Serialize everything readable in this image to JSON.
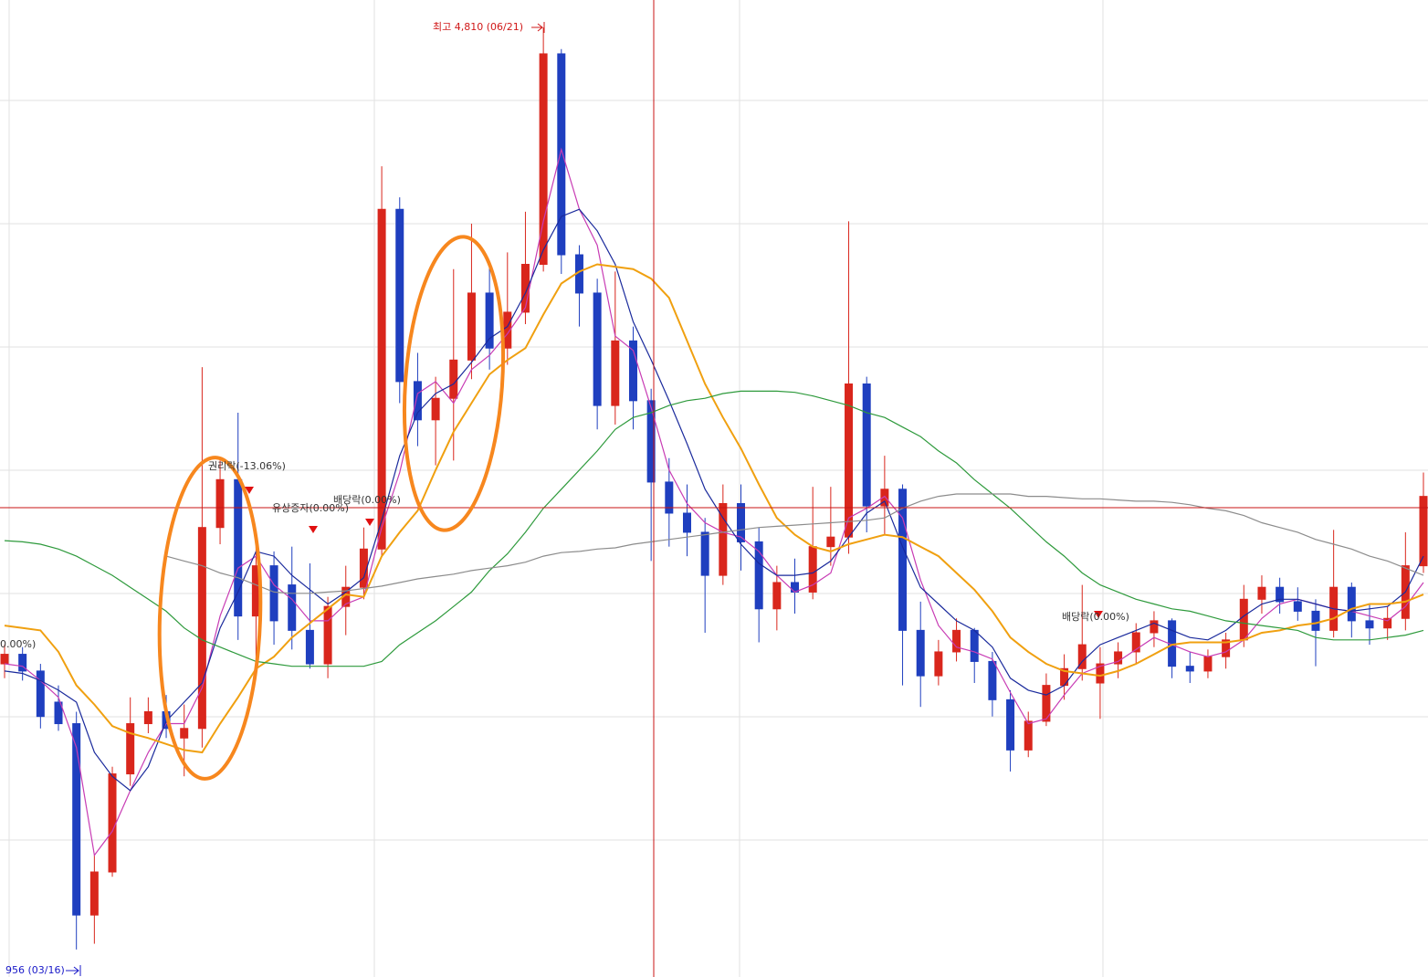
{
  "chart_data": {
    "type": "candlestick",
    "high_label": "최고 4,810 (06/21)",
    "low_label": "956 (03/16)",
    "events": [
      "권리락(-13.06%)",
      "유상증자(0.00%)",
      "배당락(0.00%)",
      "배당락(0.00%)",
      "0.00%)"
    ],
    "ylim": [
      841,
      4925
    ],
    "up_color": "#d9261c",
    "down_color": "#1f3fbf",
    "open": [
      2150,
      2190,
      2120,
      1990,
      1900,
      1100,
      1280,
      1690,
      1900,
      1950,
      1840,
      1880,
      2720,
      2920,
      2350,
      2560,
      2480,
      2290,
      2150,
      2390,
      2470,
      2630,
      4050,
      3330,
      3170,
      3260,
      3420,
      3700,
      3470,
      3620,
      3820,
      4700,
      3860,
      3700,
      3230,
      3500,
      3250,
      2910,
      2780,
      2700,
      2520,
      2820,
      2660,
      2380,
      2490,
      2450,
      2640,
      2680,
      3320,
      2810,
      2880,
      2290,
      2100,
      2200,
      2290,
      2160,
      2000,
      1790,
      1910,
      2060,
      2130,
      2070,
      2150,
      2200,
      2280,
      2330,
      2140,
      2120,
      2180,
      2250,
      2420,
      2470,
      2410,
      2370,
      2290,
      2470,
      2330,
      2300,
      2340,
      2560
    ],
    "high": [
      2230,
      2220,
      2150,
      2060,
      1950,
      1350,
      1720,
      2010,
      2010,
      2020,
      1980,
      3390,
      3000,
      3200,
      2640,
      2620,
      2640,
      2570,
      2430,
      2560,
      2720,
      4230,
      4100,
      3450,
      3350,
      3800,
      3990,
      3830,
      3870,
      4040,
      4810,
      4720,
      3900,
      3760,
      3790,
      3560,
      3300,
      3010,
      2900,
      2760,
      2900,
      2900,
      2720,
      2560,
      2590,
      2890,
      2890,
      4000,
      3350,
      3020,
      2900,
      2410,
      2250,
      2340,
      2300,
      2200,
      2040,
      1950,
      2110,
      2190,
      2480,
      2220,
      2240,
      2320,
      2370,
      2340,
      2200,
      2210,
      2280,
      2480,
      2520,
      2510,
      2470,
      2420,
      2710,
      2490,
      2400,
      2390,
      2700,
      2950
    ],
    "low": [
      2090,
      2080,
      1880,
      1870,
      956,
      980,
      1260,
      1640,
      1860,
      1840,
      1680,
      1800,
      2650,
      2250,
      2170,
      2230,
      2210,
      2130,
      2090,
      2270,
      2420,
      2600,
      3240,
      3060,
      2980,
      3000,
      3340,
      3380,
      3400,
      3570,
      3790,
      3780,
      3560,
      3130,
      3150,
      3130,
      2580,
      2640,
      2600,
      2280,
      2480,
      2540,
      2240,
      2290,
      2360,
      2420,
      2560,
      2610,
      2700,
      2690,
      2060,
      1970,
      2060,
      2160,
      2070,
      1930,
      1700,
      1760,
      1890,
      2000,
      2080,
      1920,
      2090,
      2150,
      2220,
      2090,
      2070,
      2090,
      2130,
      2220,
      2360,
      2360,
      2330,
      2140,
      2260,
      2260,
      2230,
      2250,
      2290,
      2530
    ],
    "close": [
      2190,
      2120,
      1930,
      1900,
      1100,
      1280,
      1690,
      1900,
      1950,
      1880,
      1880,
      2720,
      2920,
      2350,
      2560,
      2330,
      2290,
      2150,
      2390,
      2470,
      2630,
      4050,
      3330,
      3170,
      3260,
      3420,
      3700,
      3470,
      3620,
      3820,
      4700,
      3860,
      3700,
      3230,
      3500,
      3250,
      2910,
      2780,
      2700,
      2520,
      2820,
      2660,
      2380,
      2490,
      2450,
      2640,
      2680,
      3320,
      2810,
      2880,
      2290,
      2100,
      2200,
      2290,
      2160,
      2000,
      1790,
      1910,
      2060,
      2130,
      2230,
      2150,
      2200,
      2280,
      2330,
      2140,
      2120,
      2180,
      2250,
      2420,
      2470,
      2410,
      2370,
      2290,
      2470,
      2330,
      2300,
      2340,
      2560,
      2850
    ],
    "moving_averages": [
      {
        "color": "#c83cb4",
        "values": [
          2150,
          2140,
          2080,
          2010,
          1800,
          1350,
          1450,
          1620,
          1780,
          1900,
          1900,
          2050,
          2350,
          2550,
          2600,
          2480,
          2420,
          2330,
          2330,
          2400,
          2430,
          2720,
          2950,
          3280,
          3330,
          3240,
          3380,
          3440,
          3530,
          3640,
          4000,
          4300,
          4050,
          3900,
          3520,
          3460,
          3220,
          2960,
          2820,
          2740,
          2700,
          2680,
          2620,
          2520,
          2450,
          2480,
          2530,
          2760,
          2800,
          2850,
          2760,
          2500,
          2310,
          2220,
          2200,
          2170,
          2030,
          1900,
          1920,
          2020,
          2110,
          2140,
          2160,
          2210,
          2260,
          2230,
          2200,
          2180,
          2200,
          2250,
          2340,
          2400,
          2420,
          2400,
          2380,
          2370,
          2350,
          2330,
          2390,
          2490
        ]
      },
      {
        "color": "#1a2a9c",
        "values": [
          2120,
          2110,
          2080,
          2040,
          1990,
          1780,
          1680,
          1620,
          1720,
          1910,
          1990,
          2070,
          2300,
          2450,
          2620,
          2600,
          2520,
          2460,
          2400,
          2450,
          2510,
          2750,
          3020,
          3200,
          3280,
          3320,
          3410,
          3510,
          3560,
          3700,
          3880,
          4020,
          4050,
          3960,
          3820,
          3580,
          3420,
          3250,
          3070,
          2880,
          2760,
          2650,
          2570,
          2520,
          2520,
          2530,
          2580,
          2680,
          2780,
          2830,
          2640,
          2470,
          2400,
          2330,
          2290,
          2220,
          2090,
          2040,
          2020,
          2060,
          2160,
          2230,
          2260,
          2290,
          2320,
          2290,
          2260,
          2250,
          2290,
          2350,
          2400,
          2420,
          2420,
          2400,
          2380,
          2370,
          2380,
          2390,
          2450,
          2600
        ]
      },
      {
        "color": "#f0a010",
        "values": [
          2310,
          2300,
          2290,
          2200,
          2060,
          1980,
          1890,
          1860,
          1840,
          1815,
          1790,
          1780,
          1900,
          2010,
          2130,
          2180,
          2260,
          2320,
          2380,
          2440,
          2430,
          2600,
          2700,
          2790,
          2960,
          3120,
          3240,
          3360,
          3420,
          3470,
          3610,
          3740,
          3790,
          3820,
          3810,
          3800,
          3760,
          3680,
          3500,
          3320,
          3180,
          3050,
          2900,
          2760,
          2690,
          2640,
          2620,
          2650,
          2670,
          2690,
          2680,
          2640,
          2600,
          2530,
          2460,
          2370,
          2260,
          2200,
          2150,
          2120,
          2110,
          2100,
          2120,
          2150,
          2190,
          2230,
          2240,
          2240,
          2240,
          2250,
          2280,
          2290,
          2310,
          2320,
          2340,
          2380,
          2400,
          2400,
          2410,
          2440
        ]
      },
      {
        "color": "#2e9a3c",
        "values": [
          2665,
          2660,
          2650,
          2630,
          2600,
          2560,
          2520,
          2470,
          2420,
          2370,
          2300,
          2250,
          2220,
          2190,
          2160,
          2150,
          2140,
          2140,
          2140,
          2140,
          2140,
          2160,
          2230,
          2280,
          2330,
          2390,
          2450,
          2540,
          2610,
          2700,
          2800,
          2880,
          2960,
          3040,
          3130,
          3180,
          3200,
          3230,
          3250,
          3260,
          3280,
          3290,
          3290,
          3290,
          3285,
          3270,
          3250,
          3230,
          3200,
          3180,
          3140,
          3100,
          3040,
          2990,
          2920,
          2860,
          2800,
          2730,
          2660,
          2600,
          2530,
          2480,
          2450,
          2420,
          2400,
          2380,
          2370,
          2350,
          2330,
          2320,
          2310,
          2300,
          2290,
          2260,
          2250,
          2250,
          2250,
          2260,
          2270,
          2290
        ]
      },
      {
        "color": "#8c8c8c",
        "values": [
          null,
          null,
          null,
          null,
          null,
          null,
          null,
          null,
          null,
          2600,
          2580,
          2560,
          2530,
          2510,
          2480,
          2450,
          2445,
          2445,
          2450,
          2455,
          2465,
          2475,
          2490,
          2505,
          2515,
          2525,
          2540,
          2550,
          2560,
          2575,
          2600,
          2615,
          2620,
          2630,
          2635,
          2650,
          2660,
          2670,
          2680,
          2690,
          2700,
          2710,
          2720,
          2725,
          2730,
          2735,
          2740,
          2745,
          2750,
          2760,
          2800,
          2830,
          2850,
          2860,
          2860,
          2860,
          2860,
          2850,
          2850,
          2845,
          2840,
          2840,
          2835,
          2830,
          2830,
          2825,
          2815,
          2800,
          2790,
          2770,
          2740,
          2720,
          2700,
          2670,
          2650,
          2630,
          2600,
          2580,
          2550,
          2520
        ]
      }
    ]
  }
}
